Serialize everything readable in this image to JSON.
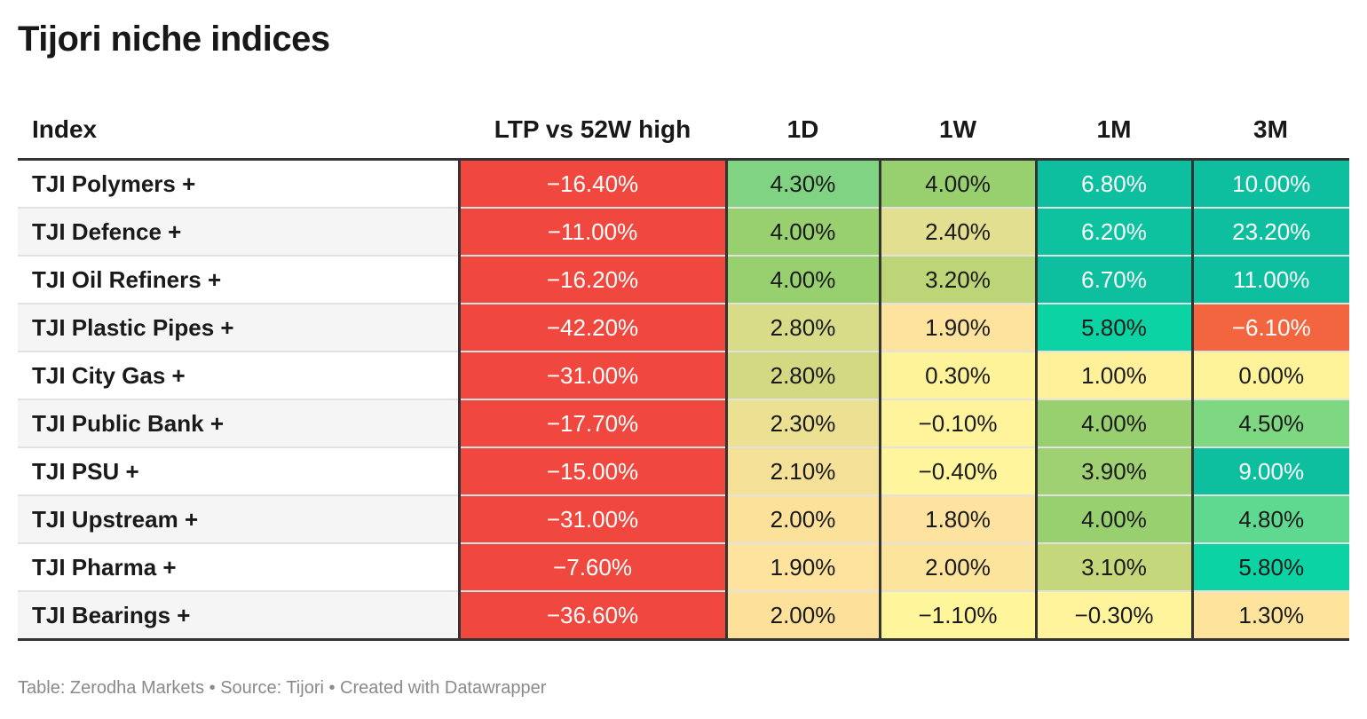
{
  "title": "Tijori niche indices",
  "footer": "Table: Zerodha Markets • Source: Tijori • Created with Datawrapper",
  "chart_data": {
    "type": "table",
    "columns": [
      "Index",
      "LTP vs 52W high",
      "1D",
      "1W",
      "1M",
      "3M"
    ],
    "rows": [
      {
        "index": "TJI Polymers +",
        "values": [
          "−16.40%",
          "4.30%",
          "4.00%",
          "6.80%",
          "10.00%"
        ],
        "colors": [
          "#f0483e",
          "#80d383",
          "#98cf6f",
          "#0dbf9f",
          "#0dbf9f"
        ],
        "text": [
          "#ffffff",
          "#1a1a1a",
          "#1a1a1a",
          "#ffffff",
          "#ffffff"
        ]
      },
      {
        "index": "TJI Defence +",
        "values": [
          "−11.00%",
          "4.00%",
          "2.40%",
          "6.20%",
          "23.20%"
        ],
        "colors": [
          "#f0483e",
          "#98cf6f",
          "#e3df91",
          "#0dc39f",
          "#0dbf9f"
        ],
        "text": [
          "#ffffff",
          "#1a1a1a",
          "#1a1a1a",
          "#ffffff",
          "#ffffff"
        ]
      },
      {
        "index": "TJI Oil Refiners +",
        "values": [
          "−16.20%",
          "4.00%",
          "3.20%",
          "6.70%",
          "11.00%"
        ],
        "colors": [
          "#f0483e",
          "#98cf6f",
          "#bdd576",
          "#0dbf9f",
          "#0dbf9f"
        ],
        "text": [
          "#ffffff",
          "#1a1a1a",
          "#1a1a1a",
          "#ffffff",
          "#ffffff"
        ]
      },
      {
        "index": "TJI Plastic Pipes +",
        "values": [
          "−42.20%",
          "2.80%",
          "1.90%",
          "5.80%",
          "−6.10%"
        ],
        "colors": [
          "#f0483e",
          "#d8dc88",
          "#fde39e",
          "#0bd3a3",
          "#f2653f"
        ],
        "text": [
          "#ffffff",
          "#1a1a1a",
          "#1a1a1a",
          "#1a1a1a",
          "#ffffff"
        ]
      },
      {
        "index": "TJI City Gas +",
        "values": [
          "−31.00%",
          "2.80%",
          "0.30%",
          "1.00%",
          "0.00%"
        ],
        "colors": [
          "#f0483e",
          "#d3d883",
          "#fff39a",
          "#fff09a",
          "#fff39a"
        ],
        "text": [
          "#ffffff",
          "#1a1a1a",
          "#1a1a1a",
          "#1a1a1a",
          "#1a1a1a"
        ]
      },
      {
        "index": "TJI Public Bank +",
        "values": [
          "−17.70%",
          "2.30%",
          "−0.10%",
          "4.00%",
          "4.50%"
        ],
        "colors": [
          "#f0483e",
          "#ece093",
          "#fff49b",
          "#98cf6f",
          "#7ed881"
        ],
        "text": [
          "#ffffff",
          "#1a1a1a",
          "#1a1a1a",
          "#1a1a1a",
          "#1a1a1a"
        ]
      },
      {
        "index": "TJI PSU +",
        "values": [
          "−15.00%",
          "2.10%",
          "−0.40%",
          "3.90%",
          "9.00%"
        ],
        "colors": [
          "#f0483e",
          "#f4e097",
          "#fff59c",
          "#9fd172",
          "#0dbf9f"
        ],
        "text": [
          "#ffffff",
          "#1a1a1a",
          "#1a1a1a",
          "#1a1a1a",
          "#ffffff"
        ]
      },
      {
        "index": "TJI Upstream +",
        "values": [
          "−31.00%",
          "2.00%",
          "1.80%",
          "4.00%",
          "4.80%"
        ],
        "colors": [
          "#f0483e",
          "#fce19a",
          "#fde39f",
          "#98cf6f",
          "#5fd890"
        ],
        "text": [
          "#ffffff",
          "#1a1a1a",
          "#1a1a1a",
          "#1a1a1a",
          "#1a1a1a"
        ]
      },
      {
        "index": "TJI Pharma +",
        "values": [
          "−7.60%",
          "1.90%",
          "2.00%",
          "3.10%",
          "5.80%"
        ],
        "colors": [
          "#f0483e",
          "#fde39e",
          "#fde49d",
          "#c4d77b",
          "#0bd3a3"
        ],
        "text": [
          "#ffffff",
          "#1a1a1a",
          "#1a1a1a",
          "#1a1a1a",
          "#1a1a1a"
        ]
      },
      {
        "index": "TJI Bearings +",
        "values": [
          "−36.60%",
          "2.00%",
          "−1.10%",
          "−0.30%",
          "1.30%"
        ],
        "colors": [
          "#f0483e",
          "#fde19b",
          "#fff69c",
          "#fff49b",
          "#fee39d"
        ],
        "text": [
          "#ffffff",
          "#1a1a1a",
          "#1a1a1a",
          "#1a1a1a",
          "#1a1a1a"
        ]
      }
    ]
  }
}
